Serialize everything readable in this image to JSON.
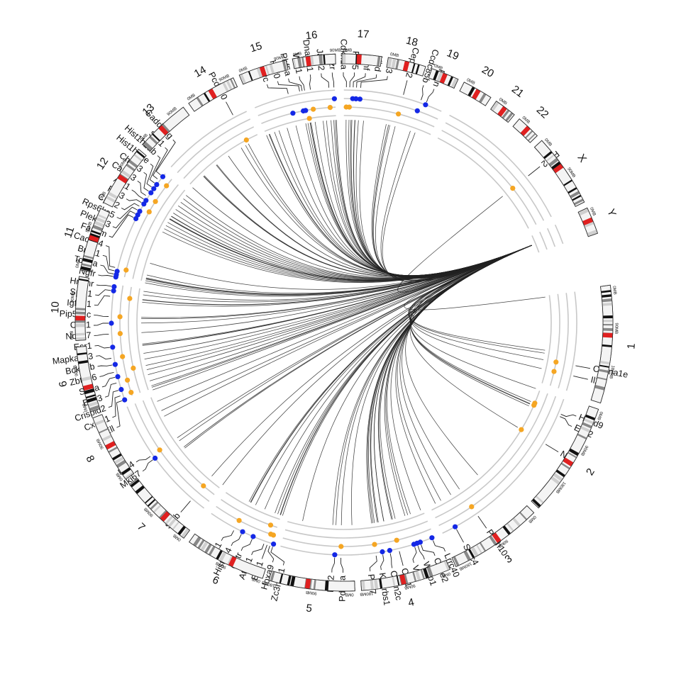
{
  "colors": {
    "orange": "#f5a623",
    "blue": "#1428e6",
    "centromere": "#e02020",
    "ring": "#c8c8c8",
    "link": "#222222"
  },
  "chromosomes": [
    {
      "name": "1",
      "size": 248,
      "ticks": [
        "0MB",
        "90MB",
        "180MB"
      ]
    },
    {
      "name": "2",
      "size": 242,
      "ticks": [
        "0MB",
        "90MB",
        "180MB"
      ]
    },
    {
      "name": "3",
      "size": 198,
      "ticks": [
        "0MB",
        "90MB",
        "180MB"
      ]
    },
    {
      "name": "4",
      "size": 190,
      "ticks": [
        "0MB",
        "90MB",
        "180MB"
      ]
    },
    {
      "name": "5",
      "size": 181,
      "ticks": [
        "0MB",
        "90MB",
        "180MB"
      ]
    },
    {
      "name": "6",
      "size": 171,
      "ticks": [
        "0MB",
        "90MB"
      ]
    },
    {
      "name": "7",
      "size": 159,
      "ticks": [
        "0MB",
        "90MB"
      ]
    },
    {
      "name": "8",
      "size": 145,
      "ticks": [
        "0MB",
        "90MB"
      ]
    },
    {
      "name": "9",
      "size": 138,
      "ticks": [
        "0MB",
        "90MB"
      ]
    },
    {
      "name": "10",
      "size": 134,
      "ticks": [
        "0MB",
        "90MB"
      ]
    },
    {
      "name": "11",
      "size": 135,
      "ticks": [
        "0MB",
        "90MB"
      ]
    },
    {
      "name": "12",
      "size": 133,
      "ticks": [
        "0MB",
        "90MB"
      ]
    },
    {
      "name": "13",
      "size": 114,
      "ticks": [
        "0MB",
        "90MB"
      ]
    },
    {
      "name": "14",
      "size": 107,
      "ticks": [
        "0MB",
        "90MB"
      ]
    },
    {
      "name": "15",
      "size": 102,
      "ticks": [
        "0MB",
        "90MB"
      ]
    },
    {
      "name": "16",
      "size": 90,
      "ticks": [
        "0MB",
        "90MB"
      ]
    },
    {
      "name": "17",
      "size": 83,
      "ticks": [
        "0MB"
      ]
    },
    {
      "name": "18",
      "size": 80,
      "ticks": [
        "0MB"
      ]
    },
    {
      "name": "19",
      "size": 59,
      "ticks": [
        "0MB"
      ]
    },
    {
      "name": "20",
      "size": 64,
      "ticks": [
        "0MB"
      ]
    },
    {
      "name": "21",
      "size": 47,
      "ticks": [
        "0MB"
      ]
    },
    {
      "name": "22",
      "size": 51,
      "ticks": [
        "0MB"
      ]
    },
    {
      "name": "X",
      "size": 156,
      "ticks": [
        "0MB",
        "90MB"
      ]
    },
    {
      "name": "Y",
      "size": 57,
      "ticks": [
        "0MB"
      ]
    }
  ],
  "hub": {
    "chr": "Y",
    "pos": 28
  },
  "genes": [
    {
      "name": "Il24",
      "chr": "1",
      "pos": 206,
      "track": 1,
      "color": "orange"
    },
    {
      "name": "Cacna1e",
      "chr": "1",
      "pos": 181,
      "track": 1,
      "color": "orange"
    },
    {
      "name": "Evx2",
      "chr": "2",
      "pos": 46,
      "track": 0,
      "color": "orange"
    },
    {
      "name": "Hoxd9",
      "chr": "2",
      "pos": 40,
      "track": 0,
      "color": "orange"
    },
    {
      "name": "Ninl",
      "chr": "2",
      "pos": 120,
      "track": 0,
      "color": "orange"
    },
    {
      "name": "Pcdh10",
      "chr": "3",
      "pos": 100,
      "track": 2,
      "color": "orange"
    },
    {
      "name": "Smc4",
      "chr": "3",
      "pos": 160,
      "track": 3,
      "color": "blue"
    },
    {
      "name": "Lrrc40",
      "chr": "4",
      "pos": 10,
      "track": 3,
      "color": "blue"
    },
    {
      "name": "Ccne2",
      "chr": "4",
      "pos": 40,
      "track": 3,
      "color": "blue"
    },
    {
      "name": "Wwp1",
      "chr": "4",
      "pos": 48,
      "track": 3,
      "color": "blue"
    },
    {
      "name": "Vcp",
      "chr": "4",
      "pos": 56,
      "track": 3,
      "color": "blue"
    },
    {
      "name": "Cer1",
      "chr": "4",
      "pos": 94,
      "track": 2,
      "color": "orange"
    },
    {
      "name": "Cdkn2c",
      "chr": "4",
      "pos": 116,
      "track": 3,
      "color": "blue"
    },
    {
      "name": "Khdrbs1",
      "chr": "4",
      "pos": 134,
      "track": 3,
      "color": "blue"
    },
    {
      "name": "Pax7",
      "chr": "4",
      "pos": 150,
      "track": 2,
      "color": "orange"
    },
    {
      "name": "Pdgfra",
      "chr": "5",
      "pos": 30,
      "track": 2,
      "color": "orange"
    },
    {
      "name": "Mtf2",
      "chr": "5",
      "pos": 45,
      "track": 3,
      "color": "blue"
    },
    {
      "name": "Zc3hav1",
      "chr": "6",
      "pos": 0,
      "track": 3,
      "color": "blue"
    },
    {
      "name": "Hoxa9",
      "chr": "6",
      "pos": 7,
      "track": 2,
      "color": "orange"
    },
    {
      "name": "Evx1",
      "chr": "6",
      "pos": 14,
      "track": 2,
      "color": "orange"
    },
    {
      "name": "Atoh1",
      "chr": "6",
      "pos": 22,
      "track": 1,
      "color": "orange"
    },
    {
      "name": "Oxtr",
      "chr": "6",
      "pos": 52,
      "track": 3,
      "color": "blue"
    },
    {
      "name": "Hist4h4",
      "chr": "6",
      "pos": 80,
      "track": 3,
      "color": "blue"
    },
    {
      "name": "Il11",
      "chr": "6",
      "pos": 100,
      "track": 2,
      "color": "orange"
    },
    {
      "name": "Spib",
      "chr": "7",
      "pos": 40,
      "track": 1,
      "color": "orange"
    },
    {
      "name": "Mki67",
      "chr": "8",
      "pos": 0,
      "track": 3,
      "color": "blue"
    },
    {
      "name": "Fgf4",
      "chr": "8",
      "pos": 10,
      "track": 2,
      "color": "orange"
    },
    {
      "name": "Ell",
      "chr": "9",
      "pos": 0,
      "track": 3,
      "color": "blue"
    },
    {
      "name": "Cx3cl1",
      "chr": "9",
      "pos": 12,
      "track": 2,
      "color": "orange"
    },
    {
      "name": "Crispld2",
      "chr": "9",
      "pos": 26,
      "track": 3,
      "color": "blue"
    },
    {
      "name": "Birc3",
      "chr": "9",
      "pos": 44,
      "track": 2,
      "color": "orange"
    },
    {
      "name": "Stt3a",
      "chr": "9",
      "pos": 58,
      "track": 3,
      "color": "blue"
    },
    {
      "name": "Zbtb16",
      "chr": "9",
      "pos": 70,
      "track": 1,
      "color": "orange"
    },
    {
      "name": "Bckdhb",
      "chr": "9",
      "pos": 88,
      "track": 3,
      "color": "blue"
    },
    {
      "name": "Mapkapk3",
      "chr": "9",
      "pos": 104,
      "track": 2,
      "color": "orange"
    },
    {
      "name": "Esr1",
      "chr": "9",
      "pos": 130,
      "track": 3,
      "color": "blue"
    },
    {
      "name": "Ncoa7",
      "chr": "10",
      "pos": 10,
      "track": 2,
      "color": "orange"
    },
    {
      "name": "Cdk1",
      "chr": "10",
      "pos": 36,
      "track": 3,
      "color": "blue"
    },
    {
      "name": "Pip5k1c",
      "chr": "10",
      "pos": 52,
      "track": 2,
      "color": "orange"
    },
    {
      "name": "Igfbp1",
      "chr": "10",
      "pos": 100,
      "track": 1,
      "color": "orange"
    },
    {
      "name": "Spdl1",
      "chr": "10",
      "pos": 114,
      "track": 3,
      "color": "blue"
    },
    {
      "name": "Hmmr",
      "chr": "10",
      "pos": 124,
      "track": 3,
      "color": "blue"
    },
    {
      "name": "Ngfr",
      "chr": "11",
      "pos": 0,
      "track": 3,
      "color": "blue"
    },
    {
      "name": "Top2a",
      "chr": "11",
      "pos": 6,
      "track": 3,
      "color": "blue"
    },
    {
      "name": "Brca1",
      "chr": "11",
      "pos": 14,
      "track": 3,
      "color": "blue"
    },
    {
      "name": "Cacng4",
      "chr": "11",
      "pos": 22,
      "track": 2,
      "color": "orange"
    },
    {
      "name": "Fancm",
      "chr": "12",
      "pos": 0,
      "track": 3,
      "color": "blue"
    },
    {
      "name": "Plekhg3",
      "chr": "12",
      "pos": 10,
      "track": 3,
      "color": "blue"
    },
    {
      "name": "Rps6ka5",
      "chr": "12",
      "pos": 20,
      "track": 3,
      "color": "blue"
    },
    {
      "name": "Cpsf2",
      "chr": "12",
      "pos": 30,
      "track": 2,
      "color": "orange"
    },
    {
      "name": "Rin3",
      "chr": "12",
      "pos": 40,
      "track": 3,
      "color": "blue"
    },
    {
      "name": "Akt1",
      "chr": "12",
      "pos": 50,
      "track": 3,
      "color": "blue"
    },
    {
      "name": "Calml3",
      "chr": "12",
      "pos": 60,
      "track": 2,
      "color": "orange"
    },
    {
      "name": "Chrm3",
      "chr": "12",
      "pos": 72,
      "track": 3,
      "color": "blue"
    },
    {
      "name": "Hist1h2ae",
      "chr": "12",
      "pos": 84,
      "track": 3,
      "color": "blue"
    },
    {
      "name": "Hist1h2ab",
      "chr": "12",
      "pos": 96,
      "track": 3,
      "color": "blue"
    },
    {
      "name": "Ssr1",
      "chr": "12",
      "pos": 108,
      "track": 2,
      "color": "orange"
    },
    {
      "name": "Gadd45g",
      "chr": "12",
      "pos": 120,
      "track": 3,
      "color": "blue"
    },
    {
      "name": "Pcdh20",
      "chr": "14",
      "pos": 70,
      "track": 0,
      "color": "orange"
    },
    {
      "name": "Myc",
      "chr": "15",
      "pos": 90,
      "track": 1,
      "color": "blue"
    },
    {
      "name": "H1f0",
      "chr": "16",
      "pos": 2,
      "track": 1,
      "color": "blue"
    },
    {
      "name": "Phf5a",
      "chr": "16",
      "pos": 8,
      "track": 1,
      "color": "blue"
    },
    {
      "name": "Wnt1",
      "chr": "16",
      "pos": 14,
      "track": 0,
      "color": "orange"
    },
    {
      "name": "Dnajb11",
      "chr": "16",
      "pos": 28,
      "track": 1,
      "color": "orange"
    },
    {
      "name": "Jam2",
      "chr": "16",
      "pos": 72,
      "track": 1,
      "color": "orange"
    },
    {
      "name": "Ezr",
      "chr": "16",
      "pos": 84,
      "track": 2,
      "color": "blue"
    },
    {
      "name": "Cdkn1a",
      "chr": "17",
      "pos": 10,
      "track": 1,
      "color": "orange"
    },
    {
      "name": "Rnf5",
      "chr": "17",
      "pos": 18,
      "track": 1,
      "color": "orange"
    },
    {
      "name": "Tnf",
      "chr": "17",
      "pos": 26,
      "track": 2,
      "color": "blue"
    },
    {
      "name": "Ubd",
      "chr": "17",
      "pos": 34,
      "track": 2,
      "color": "blue"
    },
    {
      "name": "C3",
      "chr": "17",
      "pos": 44,
      "track": 2,
      "color": "blue"
    },
    {
      "name": "Cep192",
      "chr": "18",
      "pos": 50,
      "track": 1,
      "color": "orange"
    },
    {
      "name": "Ccdc85b",
      "chr": "19",
      "pos": 0,
      "track": 2,
      "color": "blue"
    },
    {
      "name": "Pten",
      "chr": "19",
      "pos": 14,
      "track": 3,
      "color": "blue"
    },
    {
      "name": "Pim2",
      "chr": "X",
      "pos": 40,
      "track": 1,
      "color": "orange"
    }
  ]
}
